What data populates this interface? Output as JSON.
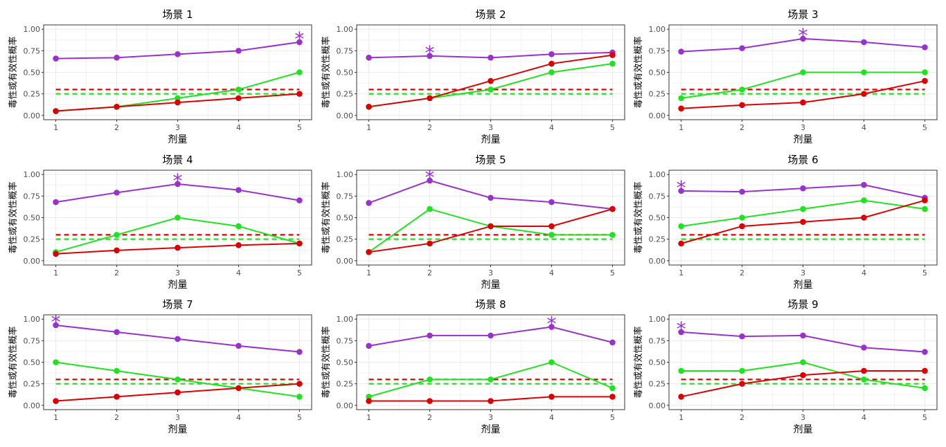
{
  "colors": {
    "toxicity": "#dd0000",
    "efficacy": "#1ee31e",
    "combined": "#9932cc",
    "grid": "#ebebeb",
    "panel_border": "#333333"
  },
  "axis_text": {
    "ylabel": "毒性或有效性概率",
    "xlabel": "剂量"
  },
  "chart_data": [
    {
      "type": "line",
      "title": "场景 1",
      "x": [
        1,
        2,
        3,
        4,
        5
      ],
      "ylim": [
        0,
        1
      ],
      "star_dose": 5,
      "series": [
        {
          "key": "combined",
          "values": [
            0.66,
            0.67,
            0.71,
            0.75,
            0.85
          ]
        },
        {
          "key": "efficacy",
          "values": [
            0.05,
            0.1,
            0.2,
            0.3,
            0.5
          ]
        },
        {
          "key": "toxicity",
          "values": [
            0.05,
            0.1,
            0.15,
            0.2,
            0.25
          ]
        }
      ],
      "ref_lines": [
        {
          "key": "toxicity",
          "y": 0.3
        },
        {
          "key": "efficacy",
          "y": 0.25
        }
      ]
    },
    {
      "type": "line",
      "title": "场景 2",
      "x": [
        1,
        2,
        3,
        4,
        5
      ],
      "ylim": [
        0,
        1
      ],
      "star_dose": 2,
      "series": [
        {
          "key": "combined",
          "values": [
            0.67,
            0.69,
            0.67,
            0.71,
            0.73
          ]
        },
        {
          "key": "efficacy",
          "values": [
            0.1,
            0.2,
            0.3,
            0.5,
            0.6
          ]
        },
        {
          "key": "toxicity",
          "values": [
            0.1,
            0.2,
            0.4,
            0.6,
            0.7
          ]
        }
      ],
      "ref_lines": [
        {
          "key": "toxicity",
          "y": 0.3
        },
        {
          "key": "efficacy",
          "y": 0.25
        }
      ]
    },
    {
      "type": "line",
      "title": "场景 3",
      "x": [
        1,
        2,
        3,
        4,
        5
      ],
      "ylim": [
        0,
        1
      ],
      "star_dose": 3,
      "series": [
        {
          "key": "combined",
          "values": [
            0.74,
            0.78,
            0.89,
            0.85,
            0.79
          ]
        },
        {
          "key": "efficacy",
          "values": [
            0.2,
            0.3,
            0.5,
            0.5,
            0.5
          ]
        },
        {
          "key": "toxicity",
          "values": [
            0.08,
            0.12,
            0.15,
            0.25,
            0.4
          ]
        }
      ],
      "ref_lines": [
        {
          "key": "toxicity",
          "y": 0.3
        },
        {
          "key": "efficacy",
          "y": 0.25
        }
      ]
    },
    {
      "type": "line",
      "title": "场景 4",
      "x": [
        1,
        2,
        3,
        4,
        5
      ],
      "ylim": [
        0,
        1
      ],
      "star_dose": 3,
      "series": [
        {
          "key": "combined",
          "values": [
            0.68,
            0.79,
            0.89,
            0.82,
            0.7
          ]
        },
        {
          "key": "efficacy",
          "values": [
            0.1,
            0.3,
            0.5,
            0.4,
            0.2
          ]
        },
        {
          "key": "toxicity",
          "values": [
            0.08,
            0.12,
            0.15,
            0.18,
            0.2
          ]
        }
      ],
      "ref_lines": [
        {
          "key": "toxicity",
          "y": 0.3
        },
        {
          "key": "efficacy",
          "y": 0.25
        }
      ]
    },
    {
      "type": "line",
      "title": "场景 5",
      "x": [
        1,
        2,
        3,
        4,
        5
      ],
      "ylim": [
        0,
        1
      ],
      "star_dose": 2,
      "series": [
        {
          "key": "combined",
          "values": [
            0.67,
            0.93,
            0.73,
            0.68,
            0.6
          ]
        },
        {
          "key": "efficacy",
          "values": [
            0.1,
            0.6,
            0.4,
            0.3,
            0.3
          ]
        },
        {
          "key": "toxicity",
          "values": [
            0.1,
            0.2,
            0.4,
            0.4,
            0.6
          ]
        }
      ],
      "ref_lines": [
        {
          "key": "toxicity",
          "y": 0.3
        },
        {
          "key": "efficacy",
          "y": 0.25
        }
      ]
    },
    {
      "type": "line",
      "title": "场景 6",
      "x": [
        1,
        2,
        3,
        4,
        5
      ],
      "ylim": [
        0,
        1
      ],
      "star_dose": 1,
      "series": [
        {
          "key": "combined",
          "values": [
            0.81,
            0.8,
            0.84,
            0.88,
            0.73
          ]
        },
        {
          "key": "efficacy",
          "values": [
            0.4,
            0.5,
            0.6,
            0.7,
            0.6
          ]
        },
        {
          "key": "toxicity",
          "values": [
            0.2,
            0.4,
            0.45,
            0.5,
            0.7
          ]
        }
      ],
      "ref_lines": [
        {
          "key": "toxicity",
          "y": 0.3
        },
        {
          "key": "efficacy",
          "y": 0.25
        }
      ]
    },
    {
      "type": "line",
      "title": "场景 7",
      "x": [
        1,
        2,
        3,
        4,
        5
      ],
      "ylim": [
        0,
        1
      ],
      "star_dose": 1,
      "series": [
        {
          "key": "combined",
          "values": [
            0.93,
            0.85,
            0.77,
            0.69,
            0.62
          ]
        },
        {
          "key": "efficacy",
          "values": [
            0.5,
            0.4,
            0.3,
            0.2,
            0.1
          ]
        },
        {
          "key": "toxicity",
          "values": [
            0.05,
            0.1,
            0.15,
            0.2,
            0.25
          ]
        }
      ],
      "ref_lines": [
        {
          "key": "toxicity",
          "y": 0.3
        },
        {
          "key": "efficacy",
          "y": 0.25
        }
      ]
    },
    {
      "type": "line",
      "title": "场景 8",
      "x": [
        1,
        2,
        3,
        4,
        5
      ],
      "ylim": [
        0,
        1
      ],
      "star_dose": 4,
      "series": [
        {
          "key": "combined",
          "values": [
            0.69,
            0.81,
            0.81,
            0.91,
            0.73
          ]
        },
        {
          "key": "efficacy",
          "values": [
            0.1,
            0.3,
            0.3,
            0.5,
            0.2
          ]
        },
        {
          "key": "toxicity",
          "values": [
            0.05,
            0.05,
            0.05,
            0.1,
            0.1
          ]
        }
      ],
      "ref_lines": [
        {
          "key": "toxicity",
          "y": 0.3
        },
        {
          "key": "efficacy",
          "y": 0.25
        }
      ]
    },
    {
      "type": "line",
      "title": "场景 9",
      "x": [
        1,
        2,
        3,
        4,
        5
      ],
      "ylim": [
        0,
        1
      ],
      "star_dose": 1,
      "series": [
        {
          "key": "combined",
          "values": [
            0.85,
            0.8,
            0.81,
            0.67,
            0.62
          ]
        },
        {
          "key": "efficacy",
          "values": [
            0.4,
            0.4,
            0.5,
            0.3,
            0.2
          ]
        },
        {
          "key": "toxicity",
          "values": [
            0.1,
            0.25,
            0.35,
            0.4,
            0.4
          ]
        }
      ],
      "ref_lines": [
        {
          "key": "toxicity",
          "y": 0.3
        },
        {
          "key": "efficacy",
          "y": 0.25
        }
      ]
    }
  ]
}
